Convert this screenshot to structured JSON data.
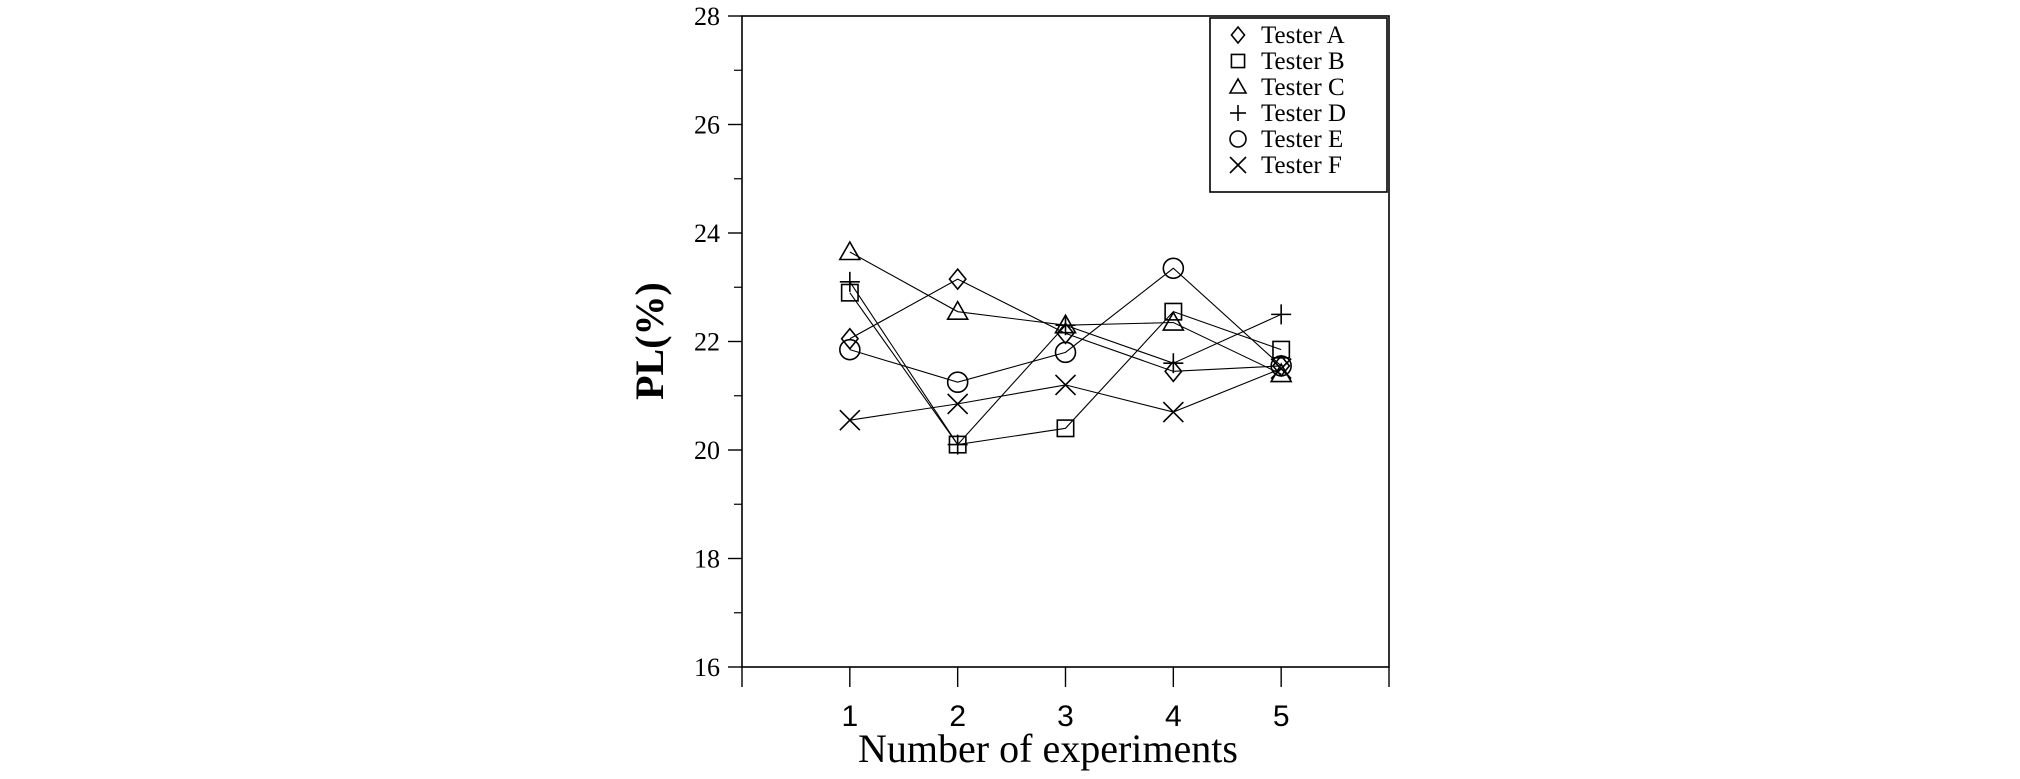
{
  "chart_data": {
    "type": "line",
    "title": "",
    "xlabel": "Number of experiments",
    "ylabel": "PL(%)",
    "x": [
      1,
      2,
      3,
      4,
      5
    ],
    "xticks": [
      "1",
      "2",
      "3",
      "4",
      "5"
    ],
    "xlim": [
      0,
      6
    ],
    "ylim": [
      16,
      28
    ],
    "yticks": [
      16,
      18,
      20,
      22,
      24,
      26,
      28
    ],
    "grid": false,
    "legend_position": "top-right",
    "series": [
      {
        "name": "Tester A",
        "marker": "diamond",
        "values": [
          22.05,
          23.15,
          22.15,
          21.45,
          21.55
        ]
      },
      {
        "name": "Tester B",
        "marker": "square",
        "values": [
          22.9,
          20.1,
          20.4,
          22.55,
          21.85
        ]
      },
      {
        "name": "Tester C",
        "marker": "triangle",
        "values": [
          23.65,
          22.55,
          22.3,
          22.35,
          21.4
        ]
      },
      {
        "name": "Tester D",
        "marker": "plus",
        "values": [
          23.1,
          20.1,
          22.3,
          21.6,
          22.5
        ]
      },
      {
        "name": "Tester E",
        "marker": "circle",
        "values": [
          21.85,
          21.25,
          21.8,
          23.35,
          21.55
        ]
      },
      {
        "name": "Tester F",
        "marker": "cross",
        "values": [
          20.55,
          20.85,
          21.2,
          20.7,
          21.5
        ]
      }
    ]
  }
}
